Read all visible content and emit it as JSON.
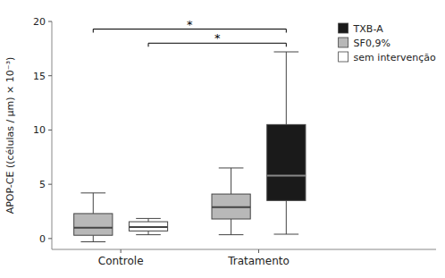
{
  "chart_data": {
    "type": "box",
    "y_label": "APOP-CE ((células / µm) × 10⁻³)",
    "categories": [
      "Controle",
      "Tratamento"
    ],
    "series": [
      {
        "name": "TXB-A",
        "color": "#1a1a1a"
      },
      {
        "name": "SF0,9%",
        "color": "#b8b8b8"
      },
      {
        "name": "sem intervenção",
        "color": "#ffffff"
      }
    ],
    "boxes": [
      {
        "category": "Controle",
        "series": "SF0,9%",
        "whislo": -0.3,
        "q1": 0.3,
        "med": 1.0,
        "q3": 2.3,
        "whishi": 4.2
      },
      {
        "category": "Controle",
        "series": "sem intervenção",
        "whislo": 0.35,
        "q1": 0.7,
        "med": 1.05,
        "q3": 1.55,
        "whishi": 1.85
      },
      {
        "category": "Tratamento",
        "series": "SF0,9%",
        "whislo": 0.35,
        "q1": 1.8,
        "med": 2.9,
        "q3": 4.1,
        "whishi": 6.5
      },
      {
        "category": "Tratamento",
        "series": "TXB-A",
        "whislo": 0.4,
        "q1": 3.5,
        "med": 5.8,
        "q3": 10.5,
        "whishi": 17.2
      }
    ],
    "annotations": [
      {
        "label": "*",
        "y": 19.3,
        "from": {
          "category": "Controle",
          "series": "SF0,9%"
        },
        "to": {
          "category": "Tratamento",
          "series": "TXB-A"
        }
      },
      {
        "label": "*",
        "y": 18.0,
        "from": {
          "category": "Controle",
          "series": "sem intervenção"
        },
        "to": {
          "category": "Tratamento",
          "series": "TXB-A"
        }
      }
    ],
    "ylim": [
      -1,
      20
    ],
    "yticks": [
      0,
      5,
      10,
      15,
      20
    ],
    "grid": false,
    "legend": "upper right"
  }
}
